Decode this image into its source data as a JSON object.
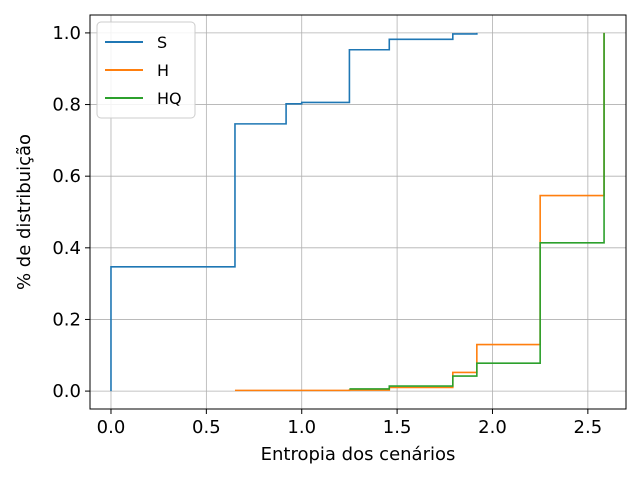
{
  "chart_data": {
    "type": "line",
    "step": true,
    "xlabel": "Entropia dos cenários",
    "ylabel": "% de distribuição",
    "xlim": [
      -0.11,
      2.7
    ],
    "ylim": [
      -0.05,
      1.05
    ],
    "xticks": [
      0.0,
      0.5,
      1.0,
      1.5,
      2.0,
      2.5
    ],
    "xtick_labels": [
      "0.0",
      "0.5",
      "1.0",
      "1.5",
      "2.0",
      "2.5"
    ],
    "yticks": [
      0.0,
      0.2,
      0.4,
      0.6,
      0.8,
      1.0
    ],
    "ytick_labels": [
      "0.0",
      "0.2",
      "0.4",
      "0.6",
      "0.8",
      "1.0"
    ],
    "grid": true,
    "legend_position": "top-left",
    "series": [
      {
        "name": "S",
        "color": "#1f77b4",
        "x": [
          0.0,
          0.0,
          0.65,
          0.918,
          1.0,
          1.25,
          1.459,
          1.792,
          1.918
        ],
        "y": [
          0.0,
          0.347,
          0.746,
          0.802,
          0.806,
          0.953,
          0.982,
          0.997,
          1.0
        ]
      },
      {
        "name": "H",
        "color": "#ff7f0e",
        "x": [
          0.65,
          1.25,
          1.459,
          1.792,
          1.918,
          2.25,
          2.585
        ],
        "y": [
          0.002,
          0.003,
          0.01,
          0.052,
          0.13,
          0.546,
          1.0
        ]
      },
      {
        "name": "HQ",
        "color": "#2ca02c",
        "x": [
          1.25,
          1.459,
          1.792,
          1.918,
          2.25,
          2.585
        ],
        "y": [
          0.006,
          0.014,
          0.042,
          0.078,
          0.414,
          1.0
        ]
      }
    ]
  }
}
